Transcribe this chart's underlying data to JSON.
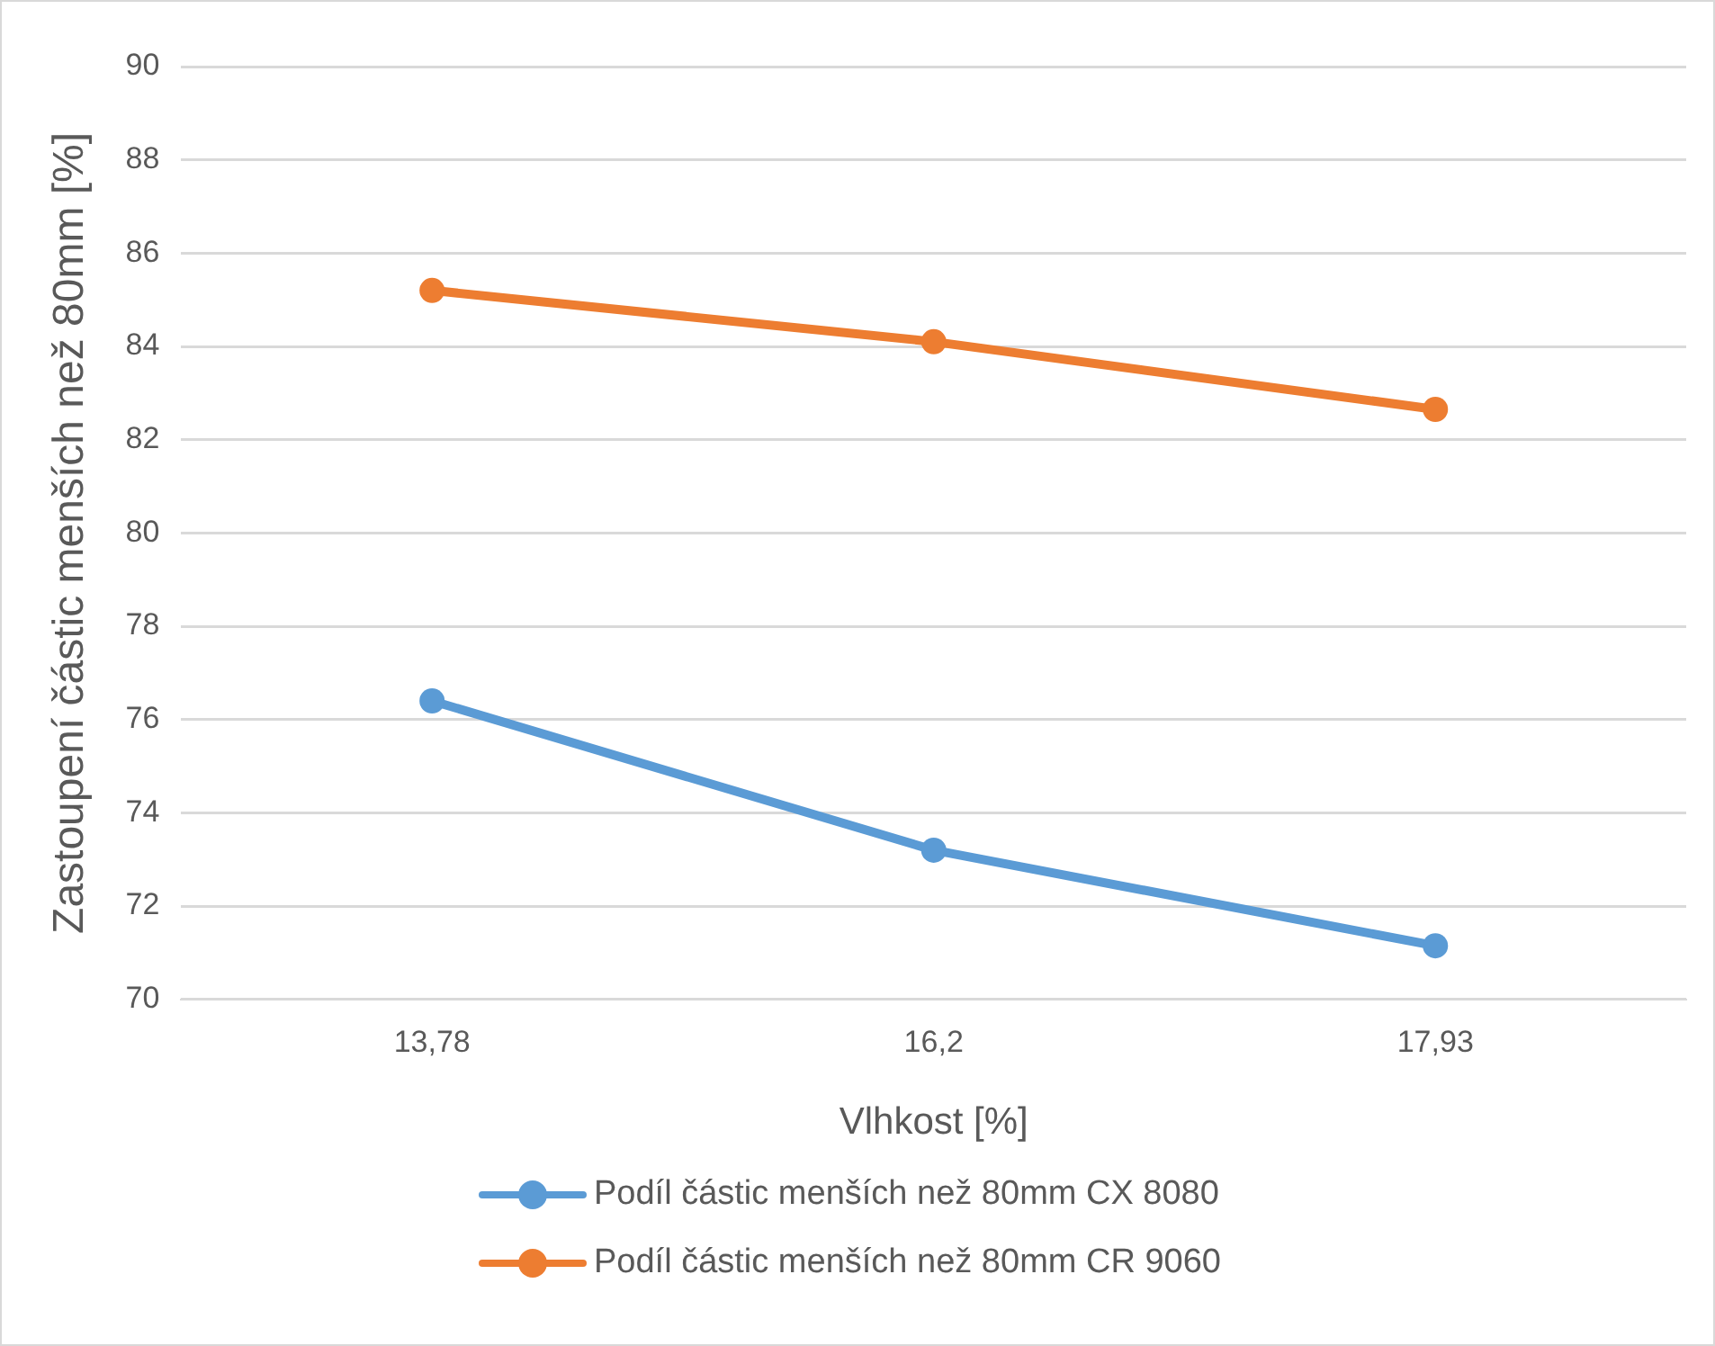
{
  "chart_data": {
    "type": "line",
    "xlabel": "Vlhkost [%]",
    "ylabel": "Zastoupení částic menších než 80mm [%]",
    "categories": [
      "13,78",
      "16,2",
      "17,93"
    ],
    "series": [
      {
        "name": "Podíl částic menších než 80mm CX 8080",
        "color": "#5b9bd5",
        "values": [
          76.4,
          73.2,
          71.15
        ]
      },
      {
        "name": "Podíl částic menších než 80mm CR 9060",
        "color": "#ed7d31",
        "values": [
          85.2,
          84.1,
          82.65
        ]
      }
    ],
    "ylim": [
      70,
      90
    ],
    "yticks": [
      70,
      72,
      74,
      76,
      78,
      80,
      82,
      84,
      86,
      88,
      90
    ],
    "grid": "y",
    "legend": "bottom",
    "marker": "circle",
    "line_style": "solid"
  }
}
